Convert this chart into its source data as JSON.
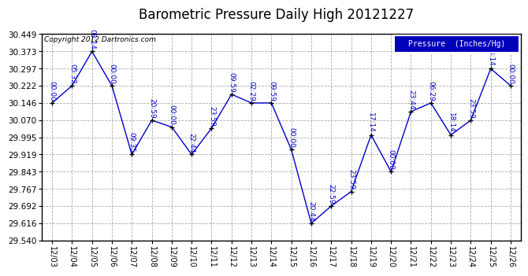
{
  "title": "Barometric Pressure Daily High 20121227",
  "copyright": "Copyright 2012 Dartronics.com",
  "legend_label": "Pressure  (Inches/Hg)",
  "dates": [
    "12/03",
    "12/04",
    "12/05",
    "12/06",
    "12/07",
    "12/08",
    "12/09",
    "12/10",
    "12/11",
    "12/12",
    "12/13",
    "12/14",
    "12/15",
    "12/16",
    "12/17",
    "12/18",
    "12/19",
    "12/20",
    "12/21",
    "12/22",
    "12/23",
    "12/24",
    "12/25",
    "12/26"
  ],
  "values": [
    30.146,
    30.222,
    30.373,
    30.222,
    29.919,
    30.07,
    30.04,
    29.919,
    30.035,
    30.184,
    30.146,
    30.146,
    29.94,
    29.616,
    29.692,
    29.756,
    30.005,
    29.843,
    30.108,
    30.146,
    30.005,
    30.07,
    30.297,
    30.222
  ],
  "annotations": [
    "00:00",
    "05:32",
    "08:14",
    "00:00",
    "09:35",
    "20:59",
    "00:00",
    "22:44",
    "23:59",
    "09:59",
    "02:29",
    "09:59",
    "00:00",
    "20:44",
    "22:59",
    "23:59",
    "17:14",
    "00:00",
    "23:44",
    "06:29",
    "18:14",
    "23:59",
    "18:14",
    "00:00"
  ],
  "ylim": [
    29.54,
    30.449
  ],
  "yticks": [
    29.54,
    29.616,
    29.692,
    29.767,
    29.843,
    29.919,
    29.995,
    30.07,
    30.146,
    30.222,
    30.297,
    30.373,
    30.449
  ],
  "line_color": "#0000cc",
  "marker_color": "#000000",
  "grid_color": "#aaaaaa",
  "bg_color": "#ffffff",
  "title_fontsize": 12,
  "annot_fontsize": 6.5,
  "legend_bg": "#0000bb",
  "legend_fg": "#ffffff"
}
